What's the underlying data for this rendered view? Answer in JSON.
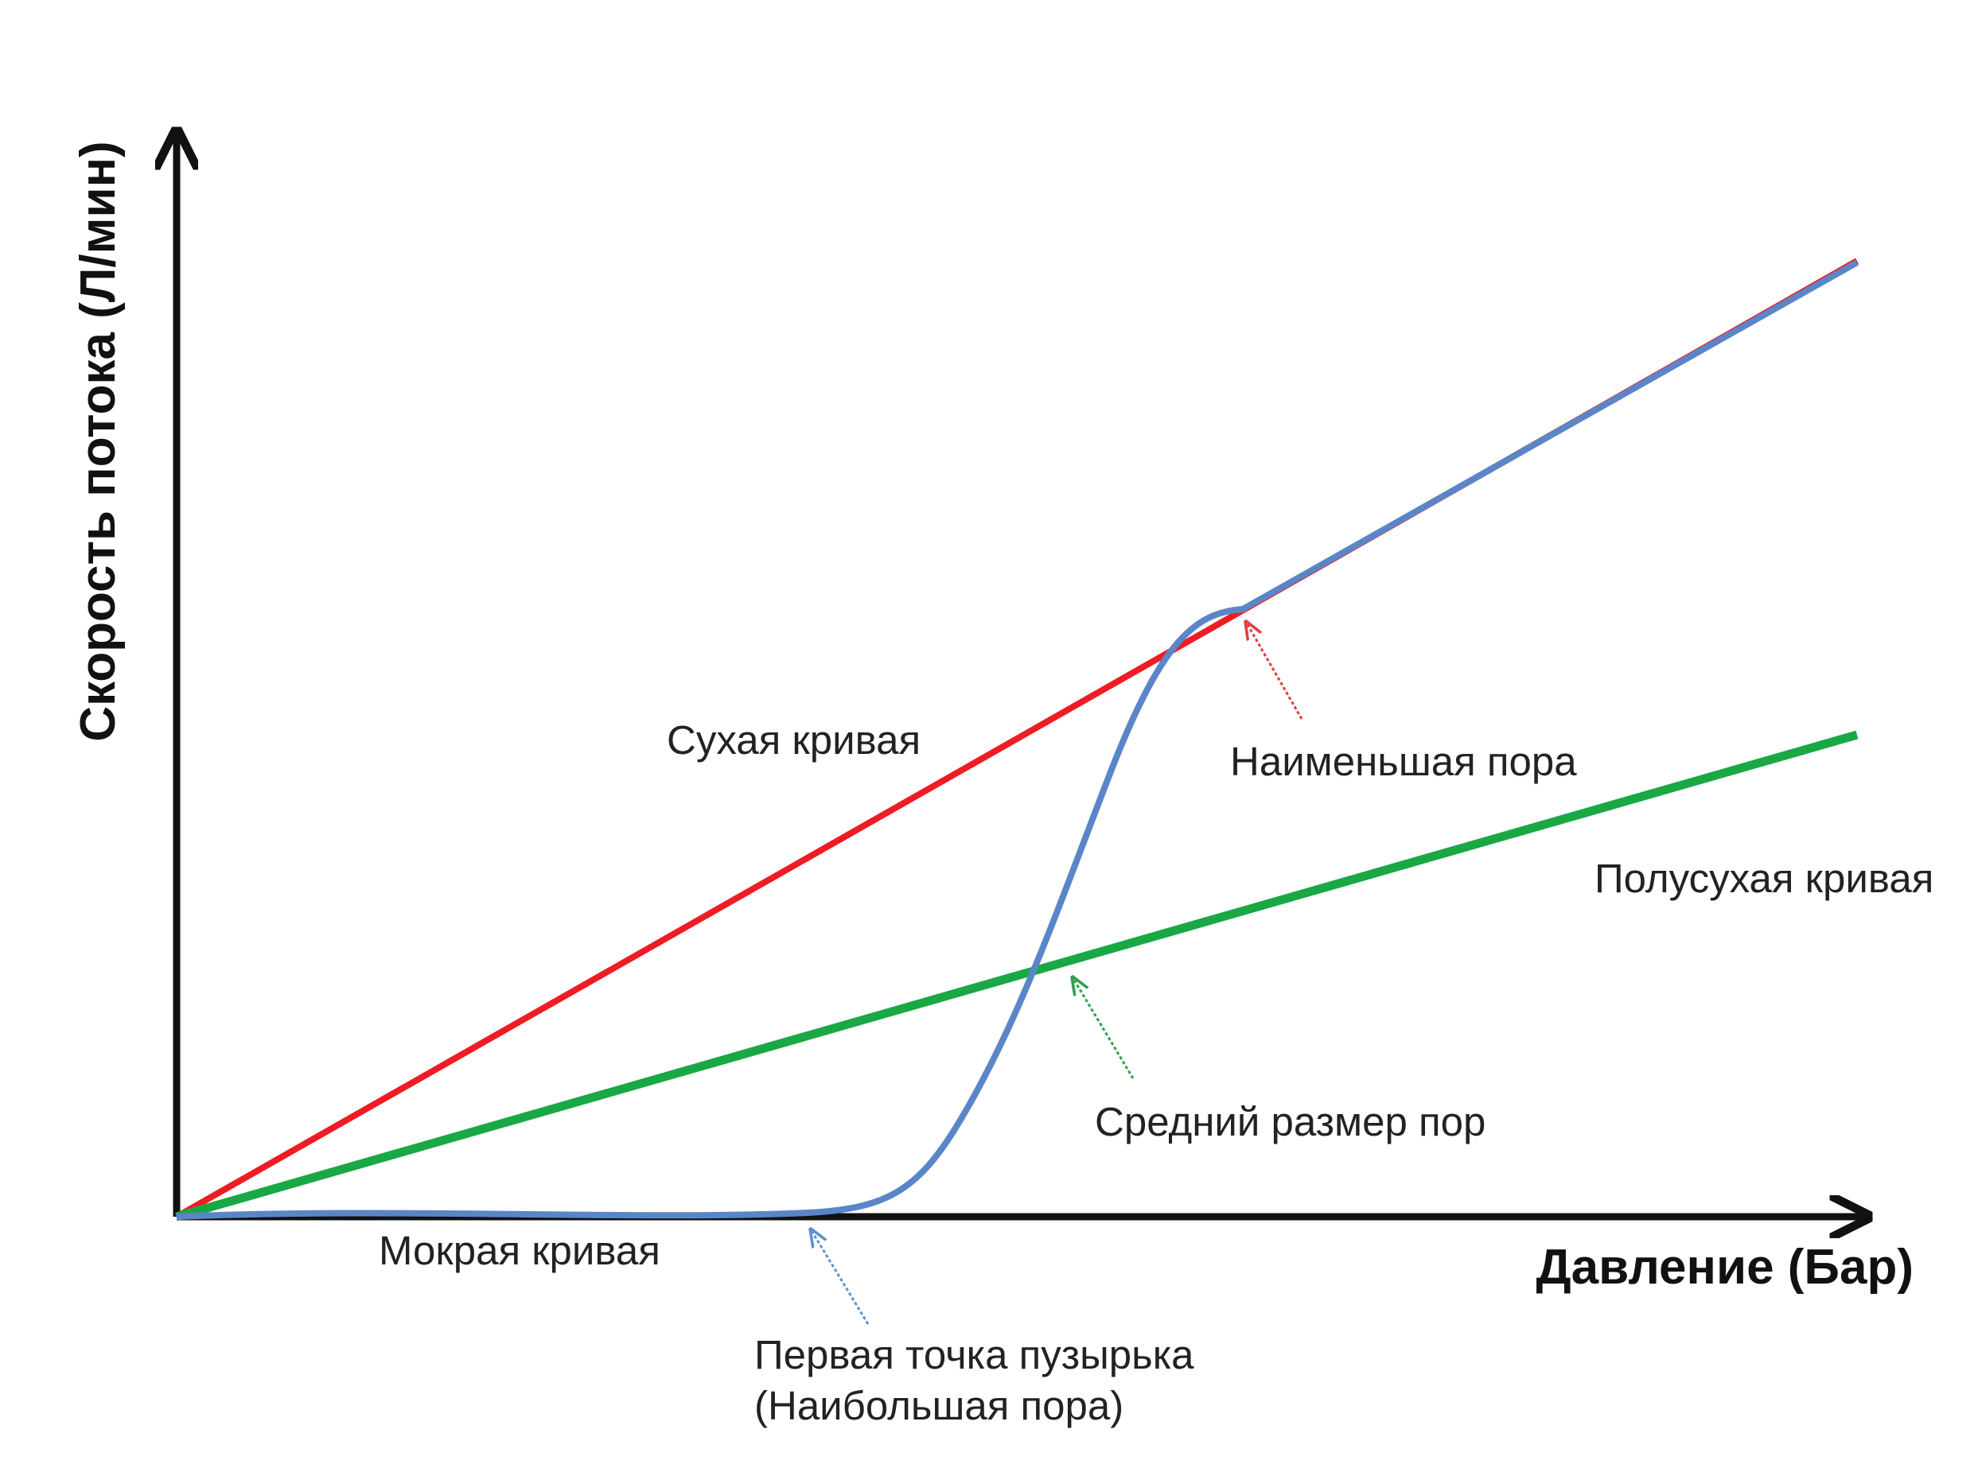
{
  "axes": {
    "x_label": "Давление (Бар)",
    "y_label": "Скорость потока (Л/мин)"
  },
  "curves": {
    "dry": "Сухая кривая",
    "half_dry": "Полусухая кривая",
    "wet": "Мокрая кривая"
  },
  "annotations": {
    "smallest_pore": "Наименьшая пора",
    "mean_pore": "Средний размер пор",
    "first_bubble": [
      "Первая точка пузырька",
      "(Наибольшая пора)"
    ]
  }
}
